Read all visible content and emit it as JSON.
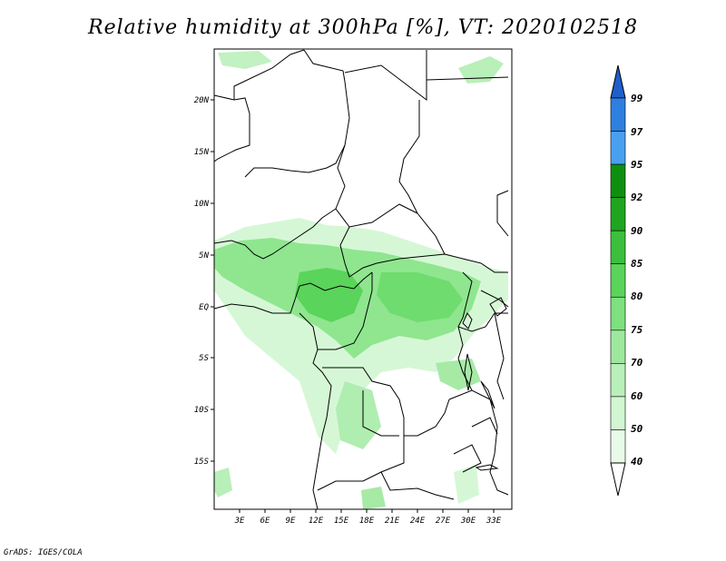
{
  "title": "Relative humidity at 300hPa [%], VT: 2020102518",
  "credit": "GrADS: IGES/COLA",
  "map": {
    "lat_ticks": [
      "20N",
      "15N",
      "10N",
      "5N",
      "EQ",
      "5S",
      "10S",
      "15S"
    ],
    "lon_ticks": [
      "3E",
      "6E",
      "9E",
      "12E",
      "15E",
      "18E",
      "21E",
      "24E",
      "27E",
      "30E",
      "33E"
    ]
  },
  "colorbar": {
    "levels": [
      "99",
      "97",
      "95",
      "92",
      "90",
      "85",
      "80",
      "75",
      "70",
      "60",
      "50",
      "40"
    ],
    "colors": [
      "#1e5fcc",
      "#2e7fe0",
      "#4aa0f0",
      "#0f8f0f",
      "#1fa51f",
      "#3cbf3c",
      "#5ad45a",
      "#7ee07e",
      "#9de89d",
      "#b9efb9",
      "#d2f5d2",
      "#e8fbe8",
      "#ffffff"
    ]
  },
  "colors": {
    "humidity_fill": "#8fe68f",
    "humidity_fill_light": "#c8f3c8",
    "border": "#000000"
  }
}
